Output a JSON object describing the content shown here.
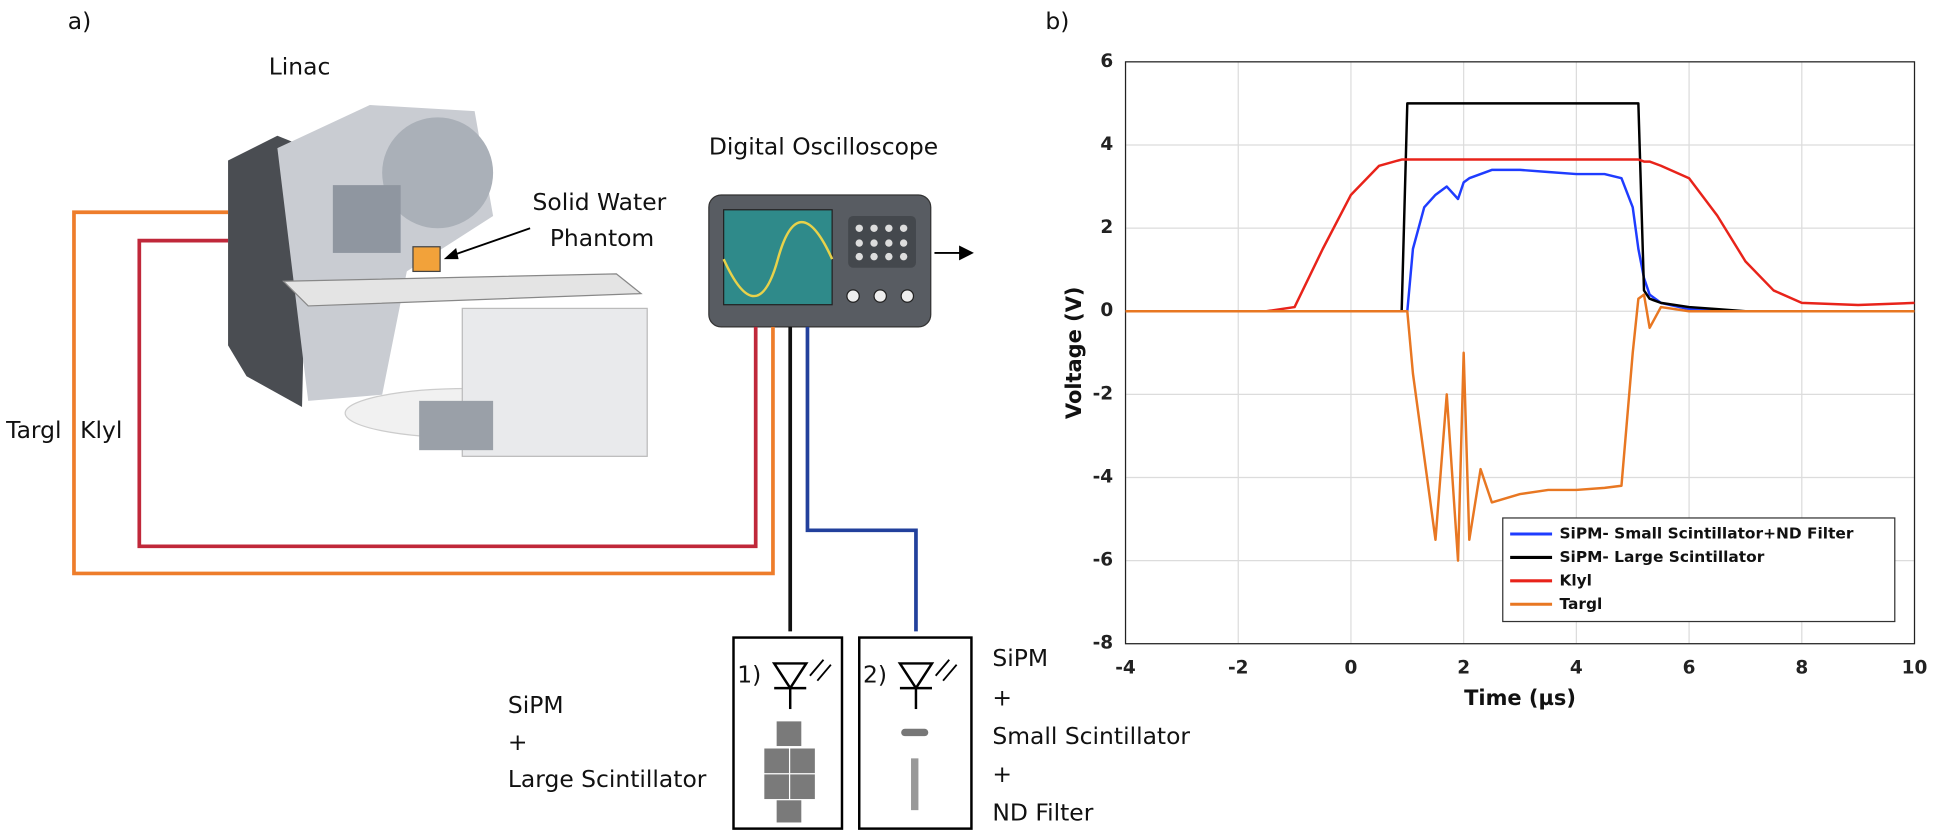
{
  "diagram": {
    "panel_a": "a)",
    "panel_b": "b)",
    "linac": "Linac",
    "phantom": [
      "Solid Water",
      "Phantom"
    ],
    "oscilloscope": "Digital Oscilloscope",
    "targ": "Targl",
    "kly": "Klyl",
    "box1": {
      "number": "1)",
      "label": [
        "SiPM",
        "+",
        "Large Scintillator"
      ]
    },
    "box2": {
      "number": "2)",
      "label": [
        "SiPM",
        "+",
        "Small Scintillator",
        "+",
        "ND Filter"
      ]
    }
  },
  "chart_data": {
    "type": "line",
    "xlabel": "Time (µs)",
    "ylabel": "Voltage (V)",
    "x": [
      -4,
      -3,
      -2,
      -1.5,
      -1,
      -0.5,
      0,
      0.5,
      0.9,
      1,
      1.1,
      1.3,
      1.5,
      1.7,
      1.9,
      2,
      2.1,
      2.3,
      2.5,
      3,
      3.5,
      4,
      4.5,
      4.8,
      5,
      5.1,
      5.2,
      5.3,
      5.5,
      6,
      6.5,
      7,
      7.5,
      8,
      9,
      10
    ],
    "series": [
      {
        "name": "SiPM- Small Scintillator+ND Filter",
        "color": "#1f3cff",
        "values": [
          0,
          0,
          0,
          0,
          0,
          0,
          0,
          0,
          0,
          0,
          1.5,
          2.5,
          2.8,
          3.0,
          2.7,
          3.1,
          3.2,
          3.3,
          3.4,
          3.4,
          3.35,
          3.3,
          3.3,
          3.2,
          2.5,
          1.5,
          0.8,
          0.4,
          0.2,
          0.05,
          0,
          0,
          0,
          0,
          0,
          0
        ]
      },
      {
        "name": "SiPM- Large Scintillator",
        "color": "#000000",
        "values": [
          0,
          0,
          0,
          0,
          0,
          0,
          0,
          0,
          0,
          5,
          5,
          5,
          5,
          5,
          5,
          5,
          5,
          5,
          5,
          5,
          5,
          5,
          5,
          5,
          5,
          5,
          0.5,
          0.3,
          0.2,
          0.1,
          0.05,
          0,
          0,
          0,
          0,
          0
        ]
      },
      {
        "name": "Klyl",
        "color": "#e8231a",
        "values": [
          0,
          0,
          0,
          0,
          0.1,
          1.5,
          2.8,
          3.5,
          3.65,
          3.65,
          3.65,
          3.65,
          3.65,
          3.65,
          3.65,
          3.65,
          3.65,
          3.65,
          3.65,
          3.65,
          3.65,
          3.65,
          3.65,
          3.65,
          3.65,
          3.65,
          3.6,
          3.6,
          3.5,
          3.2,
          2.3,
          1.2,
          0.5,
          0.2,
          0.15,
          0.2
        ]
      },
      {
        "name": "Targl",
        "color": "#e87722",
        "values": [
          0,
          0,
          0,
          0,
          0,
          0,
          0,
          0,
          0,
          0,
          -1.5,
          -3.5,
          -5.5,
          -2,
          -6,
          -1,
          -5.5,
          -3.8,
          -4.6,
          -4.4,
          -4.3,
          -4.3,
          -4.25,
          -4.2,
          -1,
          0.3,
          0.4,
          -0.4,
          0.1,
          0,
          0,
          0,
          0,
          0,
          0,
          0
        ]
      }
    ],
    "xlim": [
      -4,
      10
    ],
    "xticks": [
      -4,
      -2,
      0,
      2,
      4,
      6,
      8,
      10
    ],
    "ylim": [
      -8,
      6
    ],
    "yticks": [
      -8,
      -6,
      -4,
      -2,
      0,
      2,
      4,
      6
    ],
    "grid": true,
    "legend": "lower right"
  }
}
